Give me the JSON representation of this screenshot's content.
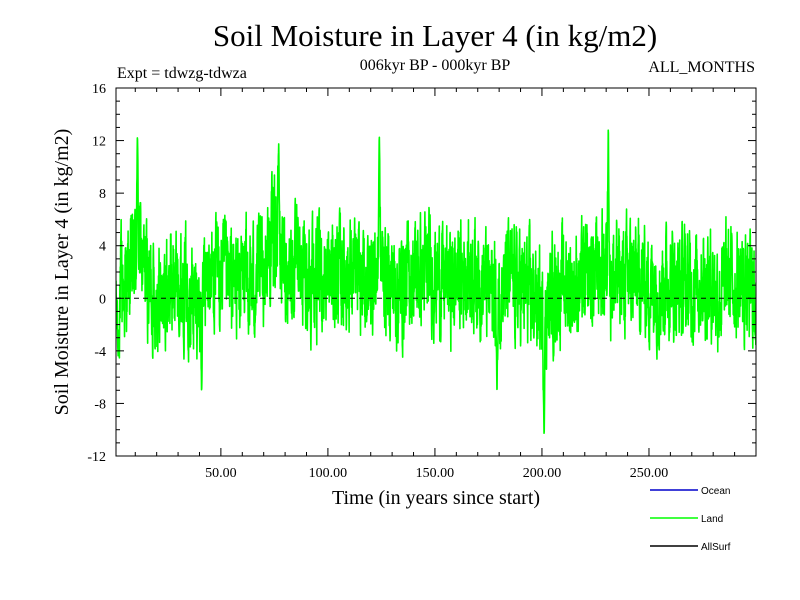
{
  "chart_data": {
    "type": "line",
    "title": "Soil Moisture in Layer 4 (in kg/m2)",
    "subtitle_left": "Expt = tdwzg-tdwza",
    "subtitle_center": "006kyr BP - 000kyr BP",
    "subtitle_right": "ALL_MONTHS",
    "xlabel": "Time (in years since start)",
    "ylabel": "Soil Moisture in Layer 4 (in kg/m2)",
    "xlim": [
      1,
      300
    ],
    "ylim": [
      -12,
      16
    ],
    "x_ticks": [
      50,
      100,
      150,
      200,
      250
    ],
    "x_tick_labels": [
      "50.00",
      "100.00",
      "150.00",
      "200.00",
      "250.00"
    ],
    "y_ticks": [
      -12,
      -8,
      -4,
      0,
      4,
      8,
      12,
      16
    ],
    "y_tick_labels": [
      "-12",
      "-8",
      "-4",
      "0",
      "4",
      "8",
      "12",
      "16"
    ],
    "zero_line": 0,
    "n_points": 3600,
    "series": [
      {
        "name": "Ocean",
        "color": "#0000cc",
        "values": []
      },
      {
        "name": "Land",
        "color": "#00ff00",
        "anchor_x": [
          1,
          3,
          5,
          8,
          10,
          12,
          14,
          17,
          20,
          23,
          26,
          30,
          35,
          38,
          42,
          45,
          50,
          55,
          60,
          65,
          70,
          73,
          75,
          77,
          80,
          85,
          90,
          95,
          100,
          105,
          110,
          115,
          120,
          124,
          128,
          133,
          138,
          143,
          148,
          153,
          158,
          163,
          168,
          172,
          176,
          179,
          183,
          188,
          193,
          197,
          200,
          202,
          205,
          210,
          215,
          220,
          225,
          230,
          232,
          235,
          240,
          245,
          250,
          255,
          260,
          265,
          270,
          275,
          280,
          283,
          287,
          292,
          296,
          300
        ],
        "anchor_mean": [
          -1.5,
          0.5,
          1.0,
          1.5,
          3.5,
          4.0,
          2.0,
          1.0,
          0.5,
          0.0,
          1.0,
          1.5,
          1.0,
          -0.5,
          0.5,
          2.0,
          1.5,
          1.0,
          1.5,
          1.0,
          2.5,
          4.0,
          5.5,
          4.0,
          2.5,
          2.0,
          2.0,
          1.5,
          1.5,
          2.0,
          2.0,
          1.0,
          1.5,
          2.5,
          1.5,
          0.5,
          1.5,
          2.0,
          2.0,
          1.5,
          1.0,
          2.0,
          2.0,
          1.5,
          0.5,
          0.5,
          1.5,
          1.0,
          0.5,
          0.0,
          -1.5,
          -1.0,
          0.5,
          1.0,
          1.0,
          1.0,
          2.0,
          2.5,
          1.5,
          1.5,
          1.5,
          1.5,
          1.0,
          1.0,
          1.5,
          1.0,
          1.0,
          1.5,
          1.0,
          0.0,
          1.5,
          1.0,
          0.5,
          0.5
        ],
        "amplitude": 3.2,
        "extremes": [
          {
            "x": 11,
            "y": 12.5
          },
          {
            "x": 41,
            "y": -7.5
          },
          {
            "x": 77,
            "y": 12.0
          },
          {
            "x": 124,
            "y": 12.9
          },
          {
            "x": 179,
            "y": -7.6
          },
          {
            "x": 201,
            "y": -10.5
          },
          {
            "x": 231,
            "y": 13.8
          },
          {
            "x": 2,
            "y": -4.4
          }
        ]
      },
      {
        "name": "AllSurf",
        "color": "#000000",
        "values": []
      }
    ],
    "legend_position": "bottom-right"
  }
}
